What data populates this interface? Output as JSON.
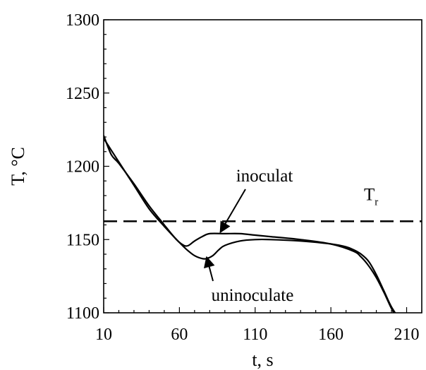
{
  "chart_data": {
    "type": "line",
    "xlabel": "t, s",
    "ylabel": "T, °C",
    "xlim": [
      10,
      220
    ],
    "ylim": [
      1100,
      1300
    ],
    "xticks": [
      10,
      60,
      110,
      160,
      210
    ],
    "yticks": [
      1100,
      1150,
      1200,
      1250,
      1300
    ],
    "grid": false,
    "series": [
      {
        "name": "inoculat",
        "x": [
          10,
          15,
          20,
          30,
          40,
          50,
          58,
          63,
          66,
          70,
          75,
          80,
          90,
          100,
          110,
          120,
          140,
          160,
          175,
          180,
          185,
          190,
          195,
          200,
          205,
          210
        ],
        "y": [
          1221,
          1208,
          1202,
          1188,
          1173,
          1160,
          1150,
          1146,
          1146,
          1149,
          1152,
          1154,
          1154,
          1154,
          1153,
          1152,
          1150,
          1147,
          1142,
          1138,
          1132,
          1124,
          1114,
          1103,
          1094,
          1085
        ]
      },
      {
        "name": "uninoculate",
        "x": [
          10,
          15,
          20,
          30,
          40,
          50,
          60,
          65,
          70,
          75,
          78,
          82,
          86,
          90,
          100,
          110,
          120,
          140,
          160,
          170,
          175,
          180,
          185,
          190,
          195,
          200,
          207
        ],
        "y": [
          1219,
          1211,
          1203,
          1187,
          1171,
          1159,
          1148,
          1143,
          1139,
          1137,
          1137,
          1139,
          1143,
          1146,
          1149,
          1150,
          1150,
          1149,
          1147,
          1145,
          1143,
          1140,
          1135,
          1126,
          1115,
          1104,
          1093
        ]
      }
    ],
    "reference_line": {
      "label": "T",
      "subscript": "r",
      "y": 1162.5
    },
    "annotations": [
      {
        "text": "inoculat",
        "target_series": "inoculat",
        "target": [
          87,
          1155
        ]
      },
      {
        "text": "uninoculate",
        "target_series": "uninoculate",
        "target": [
          78,
          1138
        ]
      }
    ]
  }
}
